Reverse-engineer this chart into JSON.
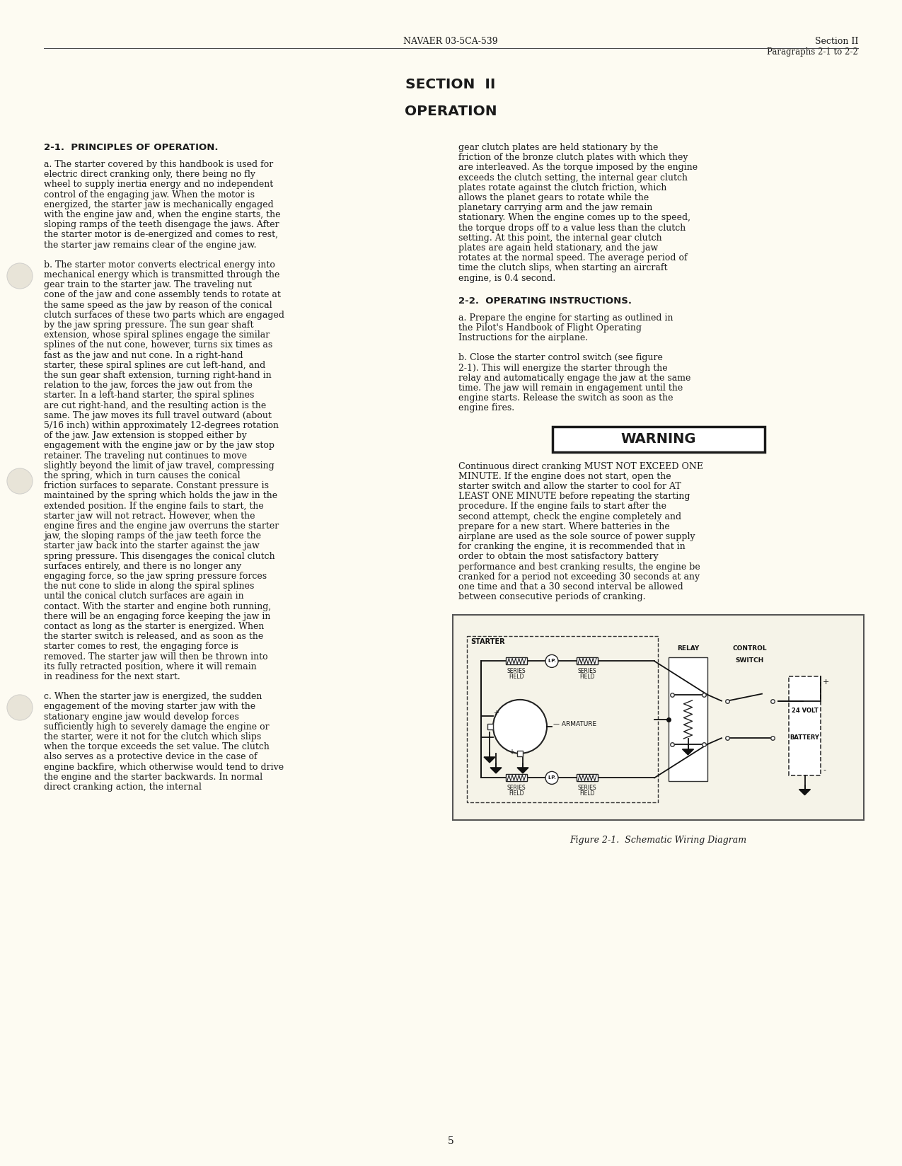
{
  "page_bg": "#FDFBF2",
  "text_color": "#1a1a1a",
  "header_center": "NAVAER 03-5CA-539",
  "header_right_line1": "Section II",
  "header_right_line2": "Paragraphs 2-1 to 2-2",
  "section_title": "SECTION  II",
  "section_subtitle": "OPERATION",
  "section_head1": "2-1.  PRINCIPLES OF OPERATION.",
  "section_head2": "2-2.  OPERATING INSTRUCTIONS.",
  "page_number": "5",
  "warning_text": "WARNING",
  "figure_caption": "Figure 2-1.  Schematic Wiring Diagram",
  "left_col_a": "a.   The starter covered by this handbook is used for electric direct cranking only, there being no fly wheel to supply inertia energy  and no independent control of the engaging jaw.  When the motor is energized, the starter jaw is mechanically engaged with the engine jaw and, when the engine starts, the sloping ramps of the teeth disengage the jaws.  After the starter motor is de-energized and comes to rest, the starter jaw remains clear of the engine jaw.",
  "left_col_b": "b.   The starter motor converts electrical energy into mechanical energy which is transmitted through the gear train to the starter jaw.  The traveling nut cone of the jaw and cone assembly tends to rotate at the same speed as the jaw by reason of the conical clutch surfaces of these two parts which are engaged by the jaw spring pressure.  The sun gear shaft extension, whose spiral splines engage the similar splines of the nut cone, however, turns six times as fast as the jaw and nut cone.  In a right-hand starter, these spiral splines are cut left-hand, and the sun gear shaft extension, turning right-hand in relation to the jaw, forces the jaw out from the starter.  In a left-hand starter, the spiral splines are cut right-hand, and the resulting action is the same.  The jaw moves its full travel outward (about 5/16 inch) within approximately 12-degrees rotation of the jaw.  Jaw extension is stopped either by engagement with the engine jaw or by the jaw stop retainer.  The traveling nut continues to move slightly beyond the limit of jaw travel, compressing the spring, which in turn causes the conical friction surfaces to separate.  Constant pressure is maintained by the spring which holds the jaw in the extended position.  If the engine fails to start, the starter jaw will not retract.  However, when the engine fires and the engine jaw overruns the starter jaw, the sloping ramps of the jaw teeth force the starter jaw back into the starter against the jaw spring pressure.  This disengages the conical clutch surfaces entirely, and there is no longer any engaging force, so the jaw spring pressure forces the nut cone to slide in along the spiral splines until the conical clutch surfaces are again in contact.  With the starter and engine both running, there will be an engaging force keeping the jaw in contact as long as the starter is energized.  When the starter switch is released, and as soon as the starter comes to rest, the engaging force is removed.  The starter jaw will then be thrown into its fully retracted position, where it will remain in readiness for the next start.",
  "left_col_c": "c.   When the starter jaw is energized, the sudden engagement of the moving starter jaw with the stationary engine jaw would develop forces sufficiently high to severely damage the engine or the starter, were it not for the clutch which slips when the torque exceeds the set value.  The clutch also serves as a protective device in the case of engine backfire, which otherwise would tend to drive the engine and the starter backwards.  In normal direct cranking action, the internal",
  "right_col_p1": "gear clutch plates are held stationary by the friction of the bronze clutch plates with which they are interleaved.  As the torque imposed by the engine exceeds the clutch setting, the internal gear clutch plates rotate against the clutch friction, which allows the planet gears to rotate while the planetary carrying arm and the jaw remain stationary.  When the engine comes up to the speed, the torque drops off to a value less than the clutch setting.  At this point, the internal gear clutch plates are again held stationary, and the jaw rotates at the normal speed.  The average period of time the clutch slips,  when starting an aircraft engine,  is 0.4 second.",
  "right_col_2a": "a.   Prepare the engine for starting as outlined in the Pilot's Handbook of Flight Operating Instructions for the airplane.",
  "right_col_2b": "b.   Close the starter control switch (see figure 2-1). This will energize the starter through the relay and automatically engage the jaw at the same time.  The jaw will remain in engagement until the engine starts. Release the switch as soon as the engine fires.",
  "warning_body": "Continuous direct cranking MUST NOT EXCEED ONE MINUTE.  If the engine does not start, open the starter switch and allow the starter to cool for AT LEAST ONE MINUTE before repeating the starting procedure.  If the engine fails to start after the second attempt, check the engine completely and prepare for a new start.  Where batteries in the airplane are used as the sole source of power supply for cranking the engine, it is recommended that in order to obtain the most satisfactory battery performance and best cranking results, the engine be cranked for a period not exceeding 30 seconds at any one time and that a 30 second interval be allowed between consecutive periods of cranking."
}
